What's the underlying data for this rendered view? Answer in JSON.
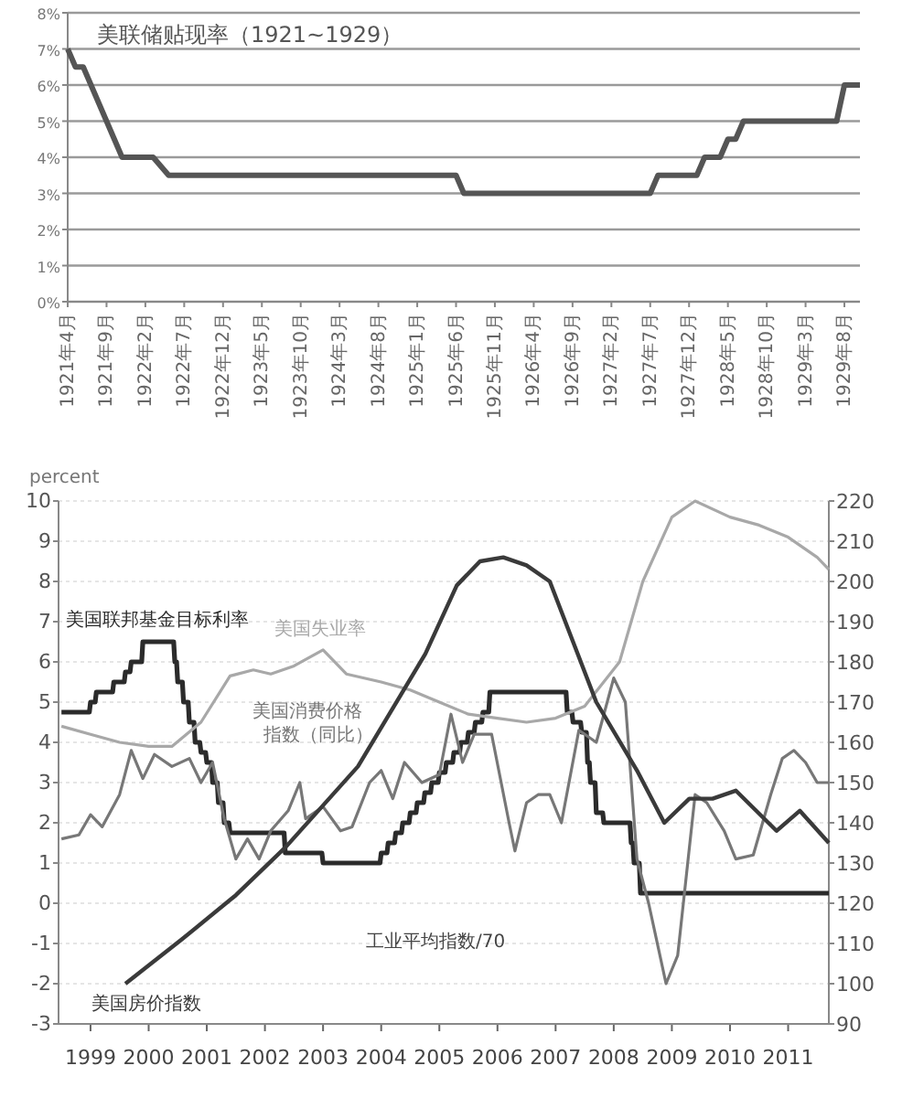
{
  "chart_data": [
    {
      "type": "line",
      "title": "美联储贴现率（1921~1929）",
      "color": "#555555",
      "grid": "y",
      "x": [
        "1921-04",
        "1921-05",
        "1921-06",
        "1921-07",
        "1921-08",
        "1921-09",
        "1921-10",
        "1921-11",
        "1922-03",
        "1922-05",
        "1925-06",
        "1925-07",
        "1927-07",
        "1927-08",
        "1928-01",
        "1928-02",
        "1928-04",
        "1928-05",
        "1928-06",
        "1928-07",
        "1929-07",
        "1929-08",
        "1929-10"
      ],
      "values": [
        7,
        6.5,
        6.5,
        6,
        5.5,
        5,
        4.5,
        4,
        4,
        3.5,
        3.5,
        3,
        3,
        3.5,
        3.5,
        4,
        4,
        4.5,
        4.5,
        5,
        5,
        6,
        6
      ],
      "xlim": [
        "1921-04",
        "1929-10"
      ],
      "ylim": [
        0,
        8
      ],
      "yticks": [
        {
          "value": 0,
          "label": "0%"
        },
        {
          "value": 1,
          "label": "1%"
        },
        {
          "value": 2,
          "label": "2%"
        },
        {
          "value": 3,
          "label": "3%"
        },
        {
          "value": 4,
          "label": "4%"
        },
        {
          "value": 5,
          "label": "5%"
        },
        {
          "value": 6,
          "label": "6%"
        },
        {
          "value": 7,
          "label": "7%"
        },
        {
          "value": 8,
          "label": "8%"
        }
      ],
      "xticks": [
        {
          "value": "1921-04",
          "label": "1921年4月"
        },
        {
          "value": "1921-09",
          "label": "1921年9月"
        },
        {
          "value": "1922-02",
          "label": "1922年2月"
        },
        {
          "value": "1922-07",
          "label": "1922年7月"
        },
        {
          "value": "1922-12",
          "label": "1922年12月"
        },
        {
          "value": "1923-05",
          "label": "1923年5月"
        },
        {
          "value": "1923-10",
          "label": "1923年10月"
        },
        {
          "value": "1924-03",
          "label": "1924年3月"
        },
        {
          "value": "1924-08",
          "label": "1924年8月"
        },
        {
          "value": "1925-01",
          "label": "1925年1月"
        },
        {
          "value": "1925-06",
          "label": "1925年6月"
        },
        {
          "value": "1925-11",
          "label": "1925年11月"
        },
        {
          "value": "1926-04",
          "label": "1926年4月"
        },
        {
          "value": "1926-09",
          "label": "1926年9月"
        },
        {
          "value": "1927-02",
          "label": "1927年2月"
        },
        {
          "value": "1927-07",
          "label": "1927年7月"
        },
        {
          "value": "1927-12",
          "label": "1927年12月"
        },
        {
          "value": "1928-05",
          "label": "1928年5月"
        },
        {
          "value": "1928-10",
          "label": "1928年10月"
        },
        {
          "value": "1929-03",
          "label": "1929年3月"
        },
        {
          "value": "1929-08",
          "label": "1929年8月"
        }
      ]
    },
    {
      "type": "line",
      "ylabel": "percent",
      "grid": "y",
      "xlim": [
        1998.95,
        2012.2
      ],
      "ylim": [
        -3,
        10
      ],
      "yticks": [
        -3,
        -2,
        -1,
        0,
        1,
        2,
        3,
        4,
        5,
        6,
        7,
        8,
        9,
        10
      ],
      "y2lim": [
        90,
        220
      ],
      "y2ticks": [
        90,
        100,
        110,
        120,
        130,
        140,
        150,
        160,
        170,
        180,
        190,
        200,
        210,
        220
      ],
      "xticks": [
        {
          "value": 1999.5,
          "label": "1999"
        },
        {
          "value": 2000.5,
          "label": "2000"
        },
        {
          "value": 2001.5,
          "label": "2001"
        },
        {
          "value": 2002.5,
          "label": "2002"
        },
        {
          "value": 2003.5,
          "label": "2003"
        },
        {
          "value": 2004.5,
          "label": "2004"
        },
        {
          "value": 2005.5,
          "label": "2005"
        },
        {
          "value": 2006.5,
          "label": "2006"
        },
        {
          "value": 2007.5,
          "label": "2007"
        },
        {
          "value": 2008.5,
          "label": "2008"
        },
        {
          "value": 2009.5,
          "label": "2009"
        },
        {
          "value": 2010.5,
          "label": "2010"
        },
        {
          "value": 2011.5,
          "label": "2011"
        }
      ],
      "annotations": [
        "工业平均指数/70"
      ],
      "series": [
        {
          "name": "美国联邦基金目标利率",
          "color": "#2b2b2b",
          "x": [
            1999.0,
            1999.48,
            1999.5,
            1999.58,
            1999.6,
            1999.88,
            1999.9,
            2000.08,
            2000.1,
            2000.18,
            2000.2,
            2000.38,
            2000.4,
            2000.93,
            2000.95,
            2000.98,
            2001.0,
            2001.08,
            2001.1,
            2001.18,
            2001.2,
            2001.28,
            2001.3,
            2001.38,
            2001.4,
            2001.48,
            2001.5,
            2001.58,
            2001.6,
            2001.68,
            2001.7,
            2001.78,
            2001.8,
            2001.88,
            2001.9,
            2002.83,
            2002.85,
            2003.48,
            2003.5,
            2004.48,
            2004.5,
            2004.6,
            2004.62,
            2004.73,
            2004.75,
            2004.85,
            2004.87,
            2004.98,
            2005.0,
            2005.1,
            2005.12,
            2005.23,
            2005.25,
            2005.35,
            2005.37,
            2005.48,
            2005.5,
            2005.6,
            2005.62,
            2005.73,
            2005.75,
            2005.85,
            2005.87,
            2005.98,
            2006.0,
            2006.1,
            2006.12,
            2006.23,
            2006.25,
            2006.35,
            2006.37,
            2007.68,
            2007.7,
            2007.78,
            2007.8,
            2007.93,
            2007.95,
            2008.03,
            2008.05,
            2008.08,
            2008.1,
            2008.18,
            2008.2,
            2008.31,
            2008.33,
            2008.78,
            2008.8,
            2008.83,
            2008.85,
            2008.94,
            2008.96,
            2012.2
          ],
          "values": [
            4.75,
            4.75,
            5,
            5,
            5.25,
            5.25,
            5.5,
            5.5,
            5.75,
            5.75,
            6,
            6,
            6.5,
            6.5,
            6,
            6,
            5.5,
            5.5,
            5,
            5,
            4.5,
            4.5,
            4,
            4,
            3.75,
            3.75,
            3.5,
            3.5,
            3,
            3,
            2.5,
            2.5,
            2,
            2,
            1.75,
            1.75,
            1.25,
            1.25,
            1,
            1,
            1.25,
            1.25,
            1.5,
            1.5,
            1.75,
            1.75,
            2,
            2,
            2.25,
            2.25,
            2.5,
            2.5,
            2.75,
            2.75,
            3,
            3,
            3.25,
            3.25,
            3.5,
            3.5,
            3.75,
            3.75,
            4,
            4,
            4.25,
            4.25,
            4.5,
            4.5,
            4.75,
            4.75,
            5.25,
            5.25,
            4.75,
            4.75,
            4.5,
            4.5,
            4.25,
            4.25,
            3.5,
            3.5,
            3,
            3,
            2.25,
            2.25,
            2,
            2,
            1.5,
            1.5,
            1,
            1,
            0.25,
            0.25
          ]
        },
        {
          "name": "美国失业率",
          "color": "#a8a8a8",
          "x": [
            1999.0,
            1999.5,
            2000.0,
            2000.5,
            2000.9,
            2001.4,
            2001.9,
            2002.3,
            2002.6,
            2003.0,
            2003.5,
            2003.9,
            2004.5,
            2005.0,
            2005.5,
            2006.0,
            2006.5,
            2007.0,
            2007.5,
            2008.0,
            2008.6,
            2009.0,
            2009.5,
            2009.9,
            2010.5,
            2011.0,
            2011.5,
            2012.0,
            2012.2
          ],
          "values": [
            4.4,
            4.2,
            4.0,
            3.9,
            3.9,
            4.5,
            5.65,
            5.8,
            5.7,
            5.9,
            6.3,
            5.7,
            5.5,
            5.3,
            5.0,
            4.7,
            4.6,
            4.5,
            4.6,
            4.9,
            6.0,
            8.0,
            9.6,
            10.0,
            9.6,
            9.4,
            9.1,
            8.6,
            8.3
          ]
        },
        {
          "name": "美国消费价格指数（同比）",
          "color": "#777777",
          "x": [
            1999.0,
            1999.3,
            1999.5,
            1999.7,
            2000.0,
            2000.2,
            2000.4,
            2000.6,
            2000.9,
            2001.2,
            2001.4,
            2001.6,
            2001.8,
            2002.0,
            2002.2,
            2002.4,
            2002.6,
            2002.9,
            2003.1,
            2003.2,
            2003.5,
            2003.8,
            2004.0,
            2004.3,
            2004.5,
            2004.7,
            2004.9,
            2005.2,
            2005.5,
            2005.7,
            2005.9,
            2006.1,
            2006.4,
            2006.7,
            2006.8,
            2007.0,
            2007.2,
            2007.4,
            2007.6,
            2007.9,
            2008.2,
            2008.5,
            2008.7,
            2008.9,
            2009.1,
            2009.4,
            2009.6,
            2009.9,
            2010.1,
            2010.4,
            2010.6,
            2010.9,
            2011.2,
            2011.4,
            2011.6,
            2011.8,
            2012.0,
            2012.2
          ],
          "values": [
            1.6,
            1.7,
            2.2,
            1.9,
            2.7,
            3.8,
            3.1,
            3.7,
            3.4,
            3.6,
            3.0,
            3.5,
            2.1,
            1.1,
            1.6,
            1.1,
            1.8,
            2.3,
            3.0,
            2.1,
            2.4,
            1.8,
            1.9,
            3.0,
            3.3,
            2.6,
            3.5,
            3.0,
            3.2,
            4.7,
            3.5,
            4.2,
            4.2,
            2.0,
            1.3,
            2.5,
            2.7,
            2.7,
            2.0,
            4.3,
            4.0,
            5.6,
            5.0,
            1.1,
            0.0,
            -2.0,
            -1.3,
            2.7,
            2.5,
            1.8,
            1.1,
            1.2,
            2.7,
            3.6,
            3.8,
            3.5,
            3.0,
            3.0
          ]
        },
        {
          "name": "美国房价指数",
          "axis": "y2",
          "color": "#3a3a3a",
          "x": [
            2000.1,
            2001.07,
            2002.0,
            2002.86,
            2004.1,
            2005.26,
            2005.8,
            2006.2,
            2006.6,
            2007.0,
            2007.4,
            2007.8,
            2008.2,
            2008.9,
            2009.37,
            2009.8,
            2010.2,
            2010.6,
            2011.3,
            2011.7,
            2012.2
          ],
          "values": [
            100,
            111,
            122,
            134,
            154,
            182,
            199,
            205,
            206,
            204,
            200,
            185,
            170,
            153,
            140,
            146,
            146,
            148,
            138,
            143,
            135
          ]
        }
      ]
    }
  ]
}
